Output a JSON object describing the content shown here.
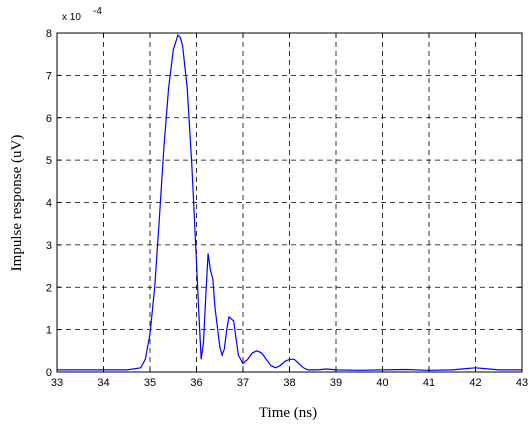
{
  "chart_data": {
    "type": "line",
    "title": "",
    "xlabel": "Time (ns)",
    "ylabel": "Impulse response (uV)",
    "y_scale_note": "x 10",
    "y_scale_exponent": "-4",
    "xlim": [
      33,
      43
    ],
    "ylim": [
      0,
      8
    ],
    "grid": true,
    "x_ticks": [
      "33",
      "34",
      "35",
      "36",
      "37",
      "38",
      "39",
      "40",
      "41",
      "42",
      "43"
    ],
    "y_ticks": [
      "0",
      "1",
      "2",
      "3",
      "4",
      "5",
      "6",
      "7",
      "8"
    ],
    "colors": {
      "line": "#0000ff",
      "axes": "#000000",
      "grid": "#000000"
    },
    "series": [
      {
        "x": [
          33.0,
          33.5,
          34.0,
          34.5,
          34.8,
          34.9,
          35.0,
          35.1,
          35.2,
          35.3,
          35.4,
          35.5,
          35.6,
          35.65,
          35.7,
          35.8,
          35.9,
          36.0,
          36.05,
          36.1,
          36.15,
          36.2,
          36.25,
          36.3,
          36.35,
          36.4,
          36.5,
          36.55,
          36.6,
          36.65,
          36.7,
          36.8,
          36.85,
          36.9,
          37.0,
          37.1,
          37.2,
          37.3,
          37.4,
          37.5,
          37.6,
          37.7,
          37.8,
          37.9,
          38.0,
          38.1,
          38.2,
          38.3,
          38.4,
          38.6,
          38.8,
          39.0,
          39.5,
          40.0,
          40.5,
          41.0,
          41.5,
          41.8,
          42.0,
          42.2,
          42.5,
          43.0
        ],
        "y": [
          0.05,
          0.05,
          0.05,
          0.05,
          0.1,
          0.3,
          0.9,
          2.0,
          3.6,
          5.3,
          6.7,
          7.6,
          7.95,
          7.9,
          7.7,
          6.7,
          4.9,
          2.6,
          1.4,
          0.3,
          0.7,
          1.8,
          2.8,
          2.4,
          2.2,
          1.5,
          0.6,
          0.4,
          0.55,
          1.0,
          1.3,
          1.2,
          0.8,
          0.4,
          0.2,
          0.3,
          0.45,
          0.5,
          0.45,
          0.3,
          0.15,
          0.1,
          0.15,
          0.25,
          0.3,
          0.3,
          0.2,
          0.1,
          0.05,
          0.05,
          0.07,
          0.05,
          0.04,
          0.05,
          0.06,
          0.04,
          0.05,
          0.08,
          0.1,
          0.08,
          0.05,
          0.05
        ]
      }
    ]
  }
}
